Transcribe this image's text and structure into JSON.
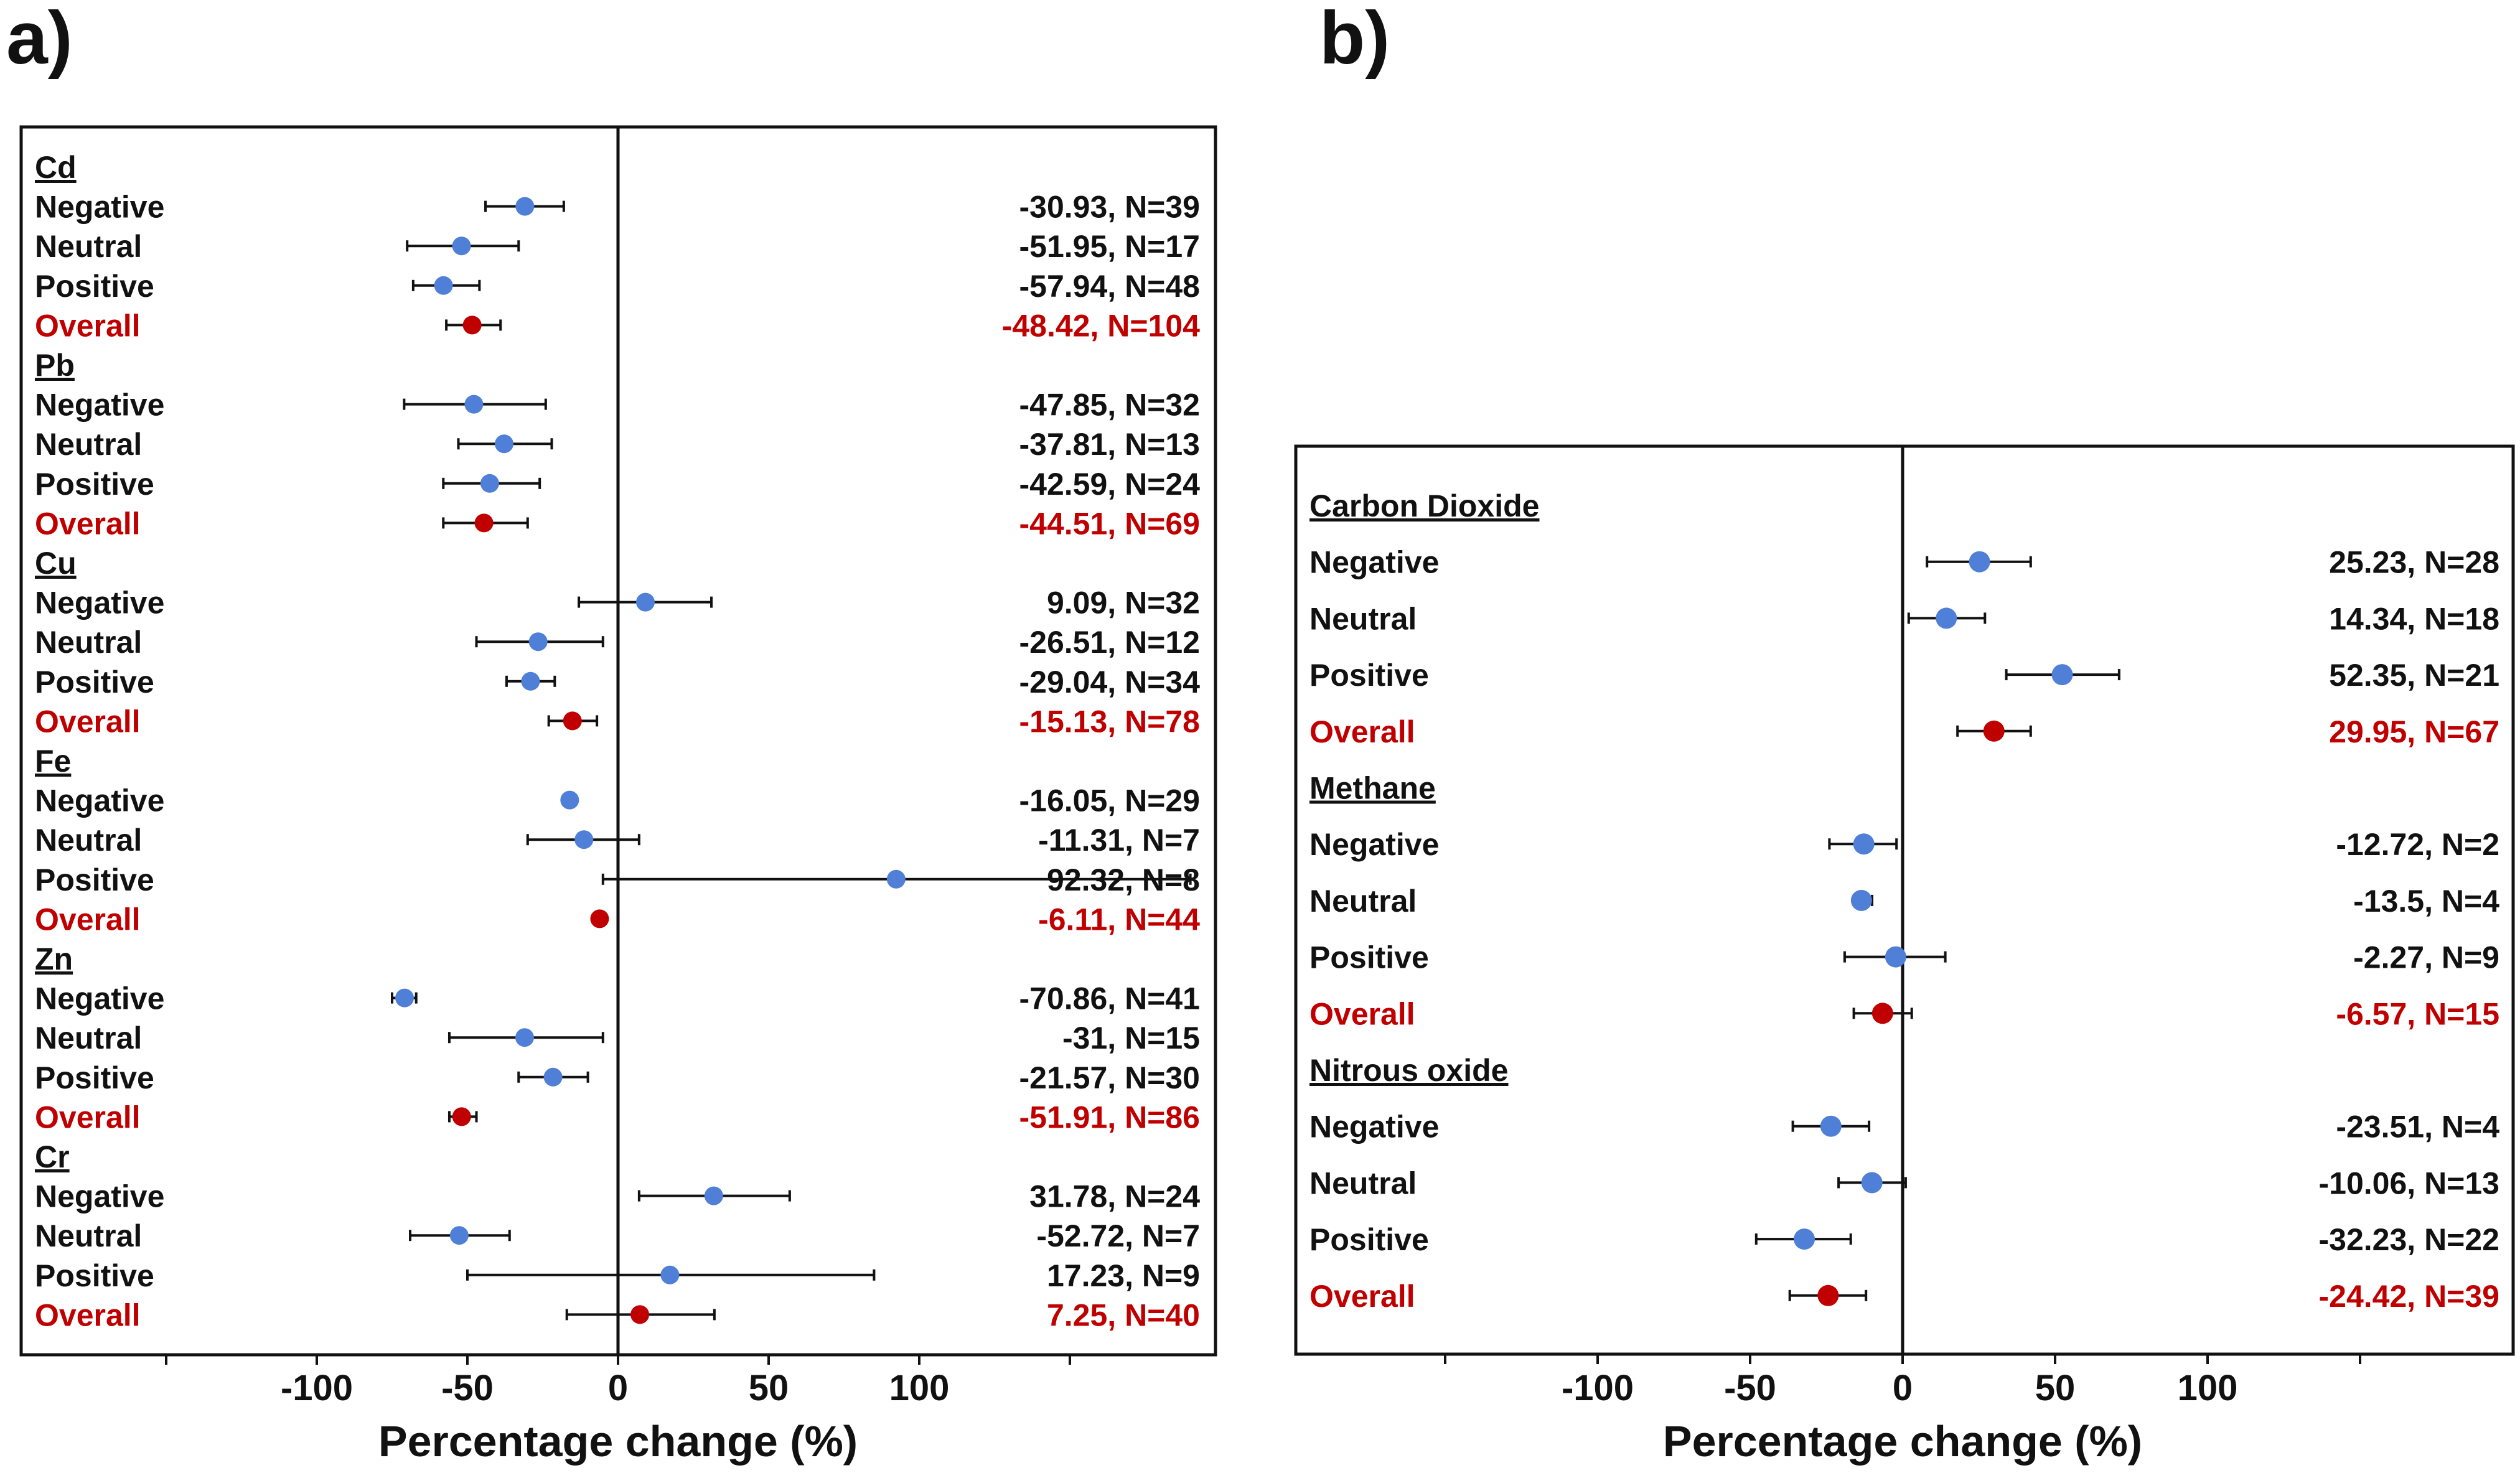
{
  "panels": {
    "a_label": "a)",
    "b_label": "b)"
  },
  "colors": {
    "subgroup": "#4f7fd6",
    "overall": "#c00000",
    "text": "#111111"
  },
  "chart_data": [
    {
      "type": "forest",
      "panel": "a)",
      "xlabel": "Percentage change (%)",
      "xticks": [
        -100,
        -50,
        0,
        50,
        100
      ],
      "xlim": [
        -200,
        200
      ],
      "groups": [
        {
          "name": "Cd",
          "rows": [
            {
              "label": "Negative",
              "kind": "sub",
              "mean": -30.93,
              "lo": -44,
              "hi": -18,
              "text": "-30.93, N=39"
            },
            {
              "label": "Neutral",
              "kind": "sub",
              "mean": -51.95,
              "lo": -70,
              "hi": -33,
              "text": "-51.95, N=17"
            },
            {
              "label": "Positive",
              "kind": "sub",
              "mean": -57.94,
              "lo": -68,
              "hi": -46,
              "text": "-57.94, N=48"
            },
            {
              "label": "Overall",
              "kind": "overall",
              "mean": -48.42,
              "lo": -57,
              "hi": -39,
              "text": "-48.42, N=104"
            }
          ]
        },
        {
          "name": "Pb",
          "rows": [
            {
              "label": "Negative",
              "kind": "sub",
              "mean": -47.85,
              "lo": -71,
              "hi": -24,
              "text": "-47.85, N=32"
            },
            {
              "label": "Neutral",
              "kind": "sub",
              "mean": -37.81,
              "lo": -53,
              "hi": -22,
              "text": "-37.81, N=13"
            },
            {
              "label": "Positive",
              "kind": "sub",
              "mean": -42.59,
              "lo": -58,
              "hi": -26,
              "text": "-42.59, N=24"
            },
            {
              "label": "Overall",
              "kind": "overall",
              "mean": -44.51,
              "lo": -58,
              "hi": -30,
              "text": "-44.51, N=69"
            }
          ]
        },
        {
          "name": "Cu",
          "rows": [
            {
              "label": "Negative",
              "kind": "sub",
              "mean": 9.09,
              "lo": -13,
              "hi": 31,
              "text": "9.09, N=32"
            },
            {
              "label": "Neutral",
              "kind": "sub",
              "mean": -26.51,
              "lo": -47,
              "hi": -5,
              "text": "-26.51, N=12"
            },
            {
              "label": "Positive",
              "kind": "sub",
              "mean": -29.04,
              "lo": -37,
              "hi": -21,
              "text": "-29.04, N=34"
            },
            {
              "label": "Overall",
              "kind": "overall",
              "mean": -15.13,
              "lo": -23,
              "hi": -7,
              "text": "-15.13, N=78"
            }
          ]
        },
        {
          "name": "Fe",
          "rows": [
            {
              "label": "Negative",
              "kind": "sub",
              "mean": -16.05,
              "lo": -18,
              "hi": -14,
              "text": "-16.05, N=29"
            },
            {
              "label": "Neutral",
              "kind": "sub",
              "mean": -11.31,
              "lo": -30,
              "hi": 7,
              "text": "-11.31, N=7"
            },
            {
              "label": "Positive",
              "kind": "sub",
              "mean": 92.32,
              "lo": -5,
              "hi": 190,
              "text": "92.32, N=8"
            },
            {
              "label": "Overall",
              "kind": "overall",
              "mean": -6.11,
              "lo": -8,
              "hi": -4,
              "text": "-6.11, N=44"
            }
          ]
        },
        {
          "name": "Zn",
          "rows": [
            {
              "label": "Negative",
              "kind": "sub",
              "mean": -70.86,
              "lo": -75,
              "hi": -67,
              "text": "-70.86, N=41"
            },
            {
              "label": "Neutral",
              "kind": "sub",
              "mean": -31,
              "lo": -56,
              "hi": -5,
              "text": "-31, N=15"
            },
            {
              "label": "Positive",
              "kind": "sub",
              "mean": -21.57,
              "lo": -33,
              "hi": -10,
              "text": "-21.57, N=30"
            },
            {
              "label": "Overall",
              "kind": "overall",
              "mean": -51.91,
              "lo": -56,
              "hi": -47,
              "text": "-51.91, N=86"
            }
          ]
        },
        {
          "name": "Cr",
          "rows": [
            {
              "label": "Negative",
              "kind": "sub",
              "mean": 31.78,
              "lo": 7,
              "hi": 57,
              "text": "31.78, N=24"
            },
            {
              "label": "Neutral",
              "kind": "sub",
              "mean": -52.72,
              "lo": -69,
              "hi": -36,
              "text": "-52.72, N=7"
            },
            {
              "label": "Positive",
              "kind": "sub",
              "mean": 17.23,
              "lo": -50,
              "hi": 85,
              "text": "17.23, N=9"
            },
            {
              "label": "Overall",
              "kind": "overall",
              "mean": 7.25,
              "lo": -17,
              "hi": 32,
              "text": "7.25, N=40"
            }
          ]
        }
      ]
    },
    {
      "type": "forest",
      "panel": "b)",
      "xlabel": "Percentage change (%)",
      "xticks": [
        -100,
        -50,
        0,
        50,
        100
      ],
      "xlim": [
        -200,
        200
      ],
      "groups": [
        {
          "name": "Carbon Dioxide",
          "rows": [
            {
              "label": "Negative",
              "kind": "sub",
              "mean": 25.23,
              "lo": 8,
              "hi": 42,
              "text": "25.23, N=28"
            },
            {
              "label": "Neutral",
              "kind": "sub",
              "mean": 14.34,
              "lo": 2,
              "hi": 27,
              "text": "14.34, N=18"
            },
            {
              "label": "Positive",
              "kind": "sub",
              "mean": 52.35,
              "lo": 34,
              "hi": 71,
              "text": "52.35, N=21"
            },
            {
              "label": "Overall",
              "kind": "overall",
              "mean": 29.95,
              "lo": 18,
              "hi": 42,
              "text": "29.95, N=67"
            }
          ]
        },
        {
          "name": "Methane",
          "rows": [
            {
              "label": "Negative",
              "kind": "sub",
              "mean": -12.72,
              "lo": -24,
              "hi": -2,
              "text": "-12.72, N=2"
            },
            {
              "label": "Neutral",
              "kind": "sub",
              "mean": -13.5,
              "lo": -16,
              "hi": -10,
              "text": "-13.5, N=4"
            },
            {
              "label": "Positive",
              "kind": "sub",
              "mean": -2.27,
              "lo": -19,
              "hi": 14,
              "text": "-2.27, N=9"
            },
            {
              "label": "Overall",
              "kind": "overall",
              "mean": -6.57,
              "lo": -16,
              "hi": 3,
              "text": "-6.57, N=15"
            }
          ]
        },
        {
          "name": "Nitrous oxide",
          "rows": [
            {
              "label": "Negative",
              "kind": "sub",
              "mean": -23.51,
              "lo": -36,
              "hi": -11,
              "text": "-23.51, N=4"
            },
            {
              "label": "Neutral",
              "kind": "sub",
              "mean": -10.06,
              "lo": -21,
              "hi": 1,
              "text": "-10.06, N=13"
            },
            {
              "label": "Positive",
              "kind": "sub",
              "mean": -32.23,
              "lo": -48,
              "hi": -17,
              "text": "-32.23, N=22"
            },
            {
              "label": "Overall",
              "kind": "overall",
              "mean": -24.42,
              "lo": -37,
              "hi": -12,
              "text": "-24.42, N=39"
            }
          ]
        }
      ]
    }
  ]
}
